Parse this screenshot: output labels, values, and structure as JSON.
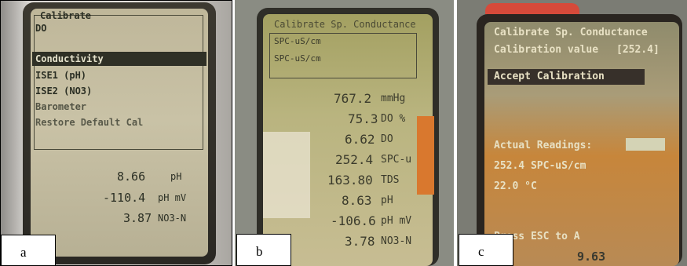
{
  "panels": [
    {
      "label": "a",
      "screen_lines": [
        "Calibrate",
        "DO",
        "Conductivity",
        "ISE1 (pH)",
        "ISE2 (NO3)",
        "Barometer",
        "Restore Default Cal"
      ],
      "selected": "Conductivity",
      "readings": [
        {
          "value": "8.66",
          "unit": "pH"
        },
        {
          "value": "-110.4",
          "unit": "pH mV"
        },
        {
          "value": "3.87",
          "unit": "NO3-N"
        }
      ]
    },
    {
      "label": "b",
      "header": "Calibrate Sp. Conductance",
      "fields": [
        "SPC-uS/cm",
        "SPC-uS/cm"
      ],
      "readings": [
        {
          "value": "767.2",
          "unit": "mmHg"
        },
        {
          "value": "75.3",
          "unit": "DO %"
        },
        {
          "value": "6.62",
          "unit": "DO"
        },
        {
          "value": "252.4",
          "unit": "SPC-u"
        },
        {
          "value": "163.80",
          "unit": "TDS"
        },
        {
          "value": "8.63",
          "unit": "pH"
        },
        {
          "value": "-106.6",
          "unit": "pH mV"
        },
        {
          "value": "3.78",
          "unit": "NO3-N"
        }
      ]
    },
    {
      "label": "c",
      "header": "Calibrate Sp. Conductance",
      "calibration_label": "Calibration value",
      "calibration_value": "[252.4]",
      "accept": "Accept Calibration",
      "actual_readings": "Actual Readings:",
      "spc_reading": "252.4 SPC-uS/cm",
      "temp_reading": "22.0 °C",
      "esc": "Press ESC to A",
      "bottom_value": "9.63"
    }
  ]
}
